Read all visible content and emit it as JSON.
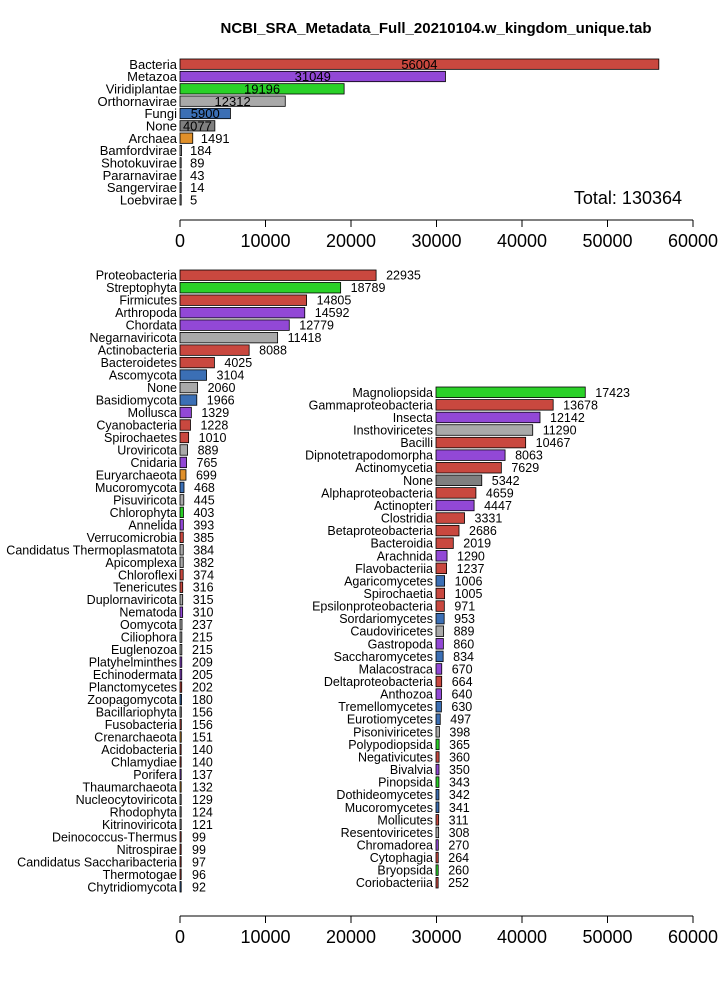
{
  "title": "NCBI_SRA_Metadata_Full_20210104.w_kingdom_unique.tab",
  "colors": {
    "red": "#c9483f",
    "purple": "#9248d6",
    "green": "#2ad128",
    "gray": "#a9a9a9",
    "darkgray": "#7f7f7f",
    "blue": "#3b6fb5",
    "orange": "#e0902a"
  },
  "chart_data": [
    {
      "type": "bar",
      "orientation": "horizontal",
      "annotation": "Total: 130364",
      "xlim": [
        0,
        60000
      ],
      "x_ticks": [
        0,
        10000,
        20000,
        30000,
        40000,
        50000,
        60000
      ],
      "bars": [
        {
          "label": "Bacteria",
          "value": 56004,
          "color": "red",
          "label_inside": true
        },
        {
          "label": "Metazoa",
          "value": 31049,
          "color": "purple",
          "label_inside": true
        },
        {
          "label": "Viridiplantae",
          "value": 19196,
          "color": "green",
          "label_inside": true
        },
        {
          "label": "Orthornavirae",
          "value": 12312,
          "color": "gray",
          "label_inside": true
        },
        {
          "label": "Fungi",
          "value": 5900,
          "color": "blue",
          "label_inside": true
        },
        {
          "label": "None",
          "value": 4077,
          "color": "darkgray",
          "label_inside": true
        },
        {
          "label": "Archaea",
          "value": 1491,
          "color": "orange"
        },
        {
          "label": "Bamfordvirae",
          "value": 184,
          "color": "gray"
        },
        {
          "label": "Shotokuvirae",
          "value": 89,
          "color": "gray"
        },
        {
          "label": "Pararnavirae",
          "value": 43,
          "color": "gray"
        },
        {
          "label": "Sangervirae",
          "value": 14,
          "color": "gray"
        },
        {
          "label": "Loebvirae",
          "value": 5,
          "color": "gray"
        }
      ]
    },
    {
      "type": "bar",
      "orientation": "horizontal",
      "xlim": [
        0,
        60000
      ],
      "x_ticks": [
        0,
        10000,
        20000,
        30000,
        40000,
        50000,
        60000
      ],
      "bars": [
        {
          "label": "Proteobacteria",
          "value": 22935,
          "color": "red"
        },
        {
          "label": "Streptophyta",
          "value": 18789,
          "color": "green"
        },
        {
          "label": "Firmicutes",
          "value": 14805,
          "color": "red"
        },
        {
          "label": "Arthropoda",
          "value": 14592,
          "color": "purple"
        },
        {
          "label": "Chordata",
          "value": 12779,
          "color": "purple"
        },
        {
          "label": "Negarnaviricota",
          "value": 11418,
          "color": "gray"
        },
        {
          "label": "Actinobacteria",
          "value": 8088,
          "color": "red"
        },
        {
          "label": "Bacteroidetes",
          "value": 4025,
          "color": "red"
        },
        {
          "label": "Ascomycota",
          "value": 3104,
          "color": "blue"
        },
        {
          "label": "None",
          "value": 2060,
          "color": "gray"
        },
        {
          "label": "Basidiomycota",
          "value": 1966,
          "color": "blue"
        },
        {
          "label": "Mollusca",
          "value": 1329,
          "color": "purple"
        },
        {
          "label": "Cyanobacteria",
          "value": 1228,
          "color": "red"
        },
        {
          "label": "Spirochaetes",
          "value": 1010,
          "color": "red"
        },
        {
          "label": "Uroviricota",
          "value": 889,
          "color": "gray"
        },
        {
          "label": "Cnidaria",
          "value": 765,
          "color": "purple"
        },
        {
          "label": "Euryarchaeota",
          "value": 699,
          "color": "orange"
        },
        {
          "label": "Mucoromycota",
          "value": 468,
          "color": "blue"
        },
        {
          "label": "Pisuviricota",
          "value": 445,
          "color": "gray"
        },
        {
          "label": "Chlorophyta",
          "value": 403,
          "color": "green"
        },
        {
          "label": "Annelida",
          "value": 393,
          "color": "purple"
        },
        {
          "label": "Verrucomicrobia",
          "value": 385,
          "color": "red"
        },
        {
          "label": "Candidatus Thermoplasmatota",
          "value": 384,
          "color": "gray"
        },
        {
          "label": "Apicomplexa",
          "value": 382,
          "color": "gray"
        },
        {
          "label": "Chloroflexi",
          "value": 374,
          "color": "red"
        },
        {
          "label": "Tenericutes",
          "value": 316,
          "color": "red"
        },
        {
          "label": "Duplornaviricota",
          "value": 315,
          "color": "gray"
        },
        {
          "label": "Nematoda",
          "value": 310,
          "color": "purple"
        },
        {
          "label": "Oomycota",
          "value": 237,
          "color": "gray"
        },
        {
          "label": "Ciliophora",
          "value": 215,
          "color": "gray"
        },
        {
          "label": "Euglenozoa",
          "value": 215,
          "color": "gray"
        },
        {
          "label": "Platyhelminthes",
          "value": 209,
          "color": "purple"
        },
        {
          "label": "Echinodermata",
          "value": 205,
          "color": "purple"
        },
        {
          "label": "Planctomycetes",
          "value": 202,
          "color": "red"
        },
        {
          "label": "Zoopagomycota",
          "value": 180,
          "color": "blue"
        },
        {
          "label": "Bacillariophyta",
          "value": 156,
          "color": "gray"
        },
        {
          "label": "Fusobacteria",
          "value": 156,
          "color": "red"
        },
        {
          "label": "Crenarchaeota",
          "value": 151,
          "color": "orange"
        },
        {
          "label": "Acidobacteria",
          "value": 140,
          "color": "red"
        },
        {
          "label": "Chlamydiae",
          "value": 140,
          "color": "red"
        },
        {
          "label": "Porifera",
          "value": 137,
          "color": "purple"
        },
        {
          "label": "Thaumarchaeota",
          "value": 132,
          "color": "orange"
        },
        {
          "label": "Nucleocytoviricota",
          "value": 129,
          "color": "gray"
        },
        {
          "label": "Rhodophyta",
          "value": 124,
          "color": "gray"
        },
        {
          "label": "Kitrinoviricota",
          "value": 121,
          "color": "gray"
        },
        {
          "label": "Deinococcus-Thermus",
          "value": 99,
          "color": "red"
        },
        {
          "label": "Nitrospirae",
          "value": 99,
          "color": "red"
        },
        {
          "label": "Candidatus Saccharibacteria",
          "value": 97,
          "color": "red"
        },
        {
          "label": "Thermotogae",
          "value": 96,
          "color": "red"
        },
        {
          "label": "Chytridiomycota",
          "value": 92,
          "color": "blue"
        }
      ]
    },
    {
      "type": "bar",
      "orientation": "horizontal",
      "inset": true,
      "xlim": [
        0,
        30000
      ],
      "bars": [
        {
          "label": "Magnoliopsida",
          "value": 17423,
          "color": "green"
        },
        {
          "label": "Gammaproteobacteria",
          "value": 13678,
          "color": "red"
        },
        {
          "label": "Insecta",
          "value": 12142,
          "color": "purple"
        },
        {
          "label": "Insthoviricetes",
          "value": 11290,
          "color": "gray"
        },
        {
          "label": "Bacilli",
          "value": 10467,
          "color": "red"
        },
        {
          "label": "Dipnotetrapodomorpha",
          "value": 8063,
          "color": "purple"
        },
        {
          "label": "Actinomycetia",
          "value": 7629,
          "color": "red"
        },
        {
          "label": "None",
          "value": 5342,
          "color": "darkgray"
        },
        {
          "label": "Alphaproteobacteria",
          "value": 4659,
          "color": "red"
        },
        {
          "label": "Actinopteri",
          "value": 4447,
          "color": "purple"
        },
        {
          "label": "Clostridia",
          "value": 3331,
          "color": "red"
        },
        {
          "label": "Betaproteobacteria",
          "value": 2686,
          "color": "red"
        },
        {
          "label": "Bacteroidia",
          "value": 2019,
          "color": "red"
        },
        {
          "label": "Arachnida",
          "value": 1290,
          "color": "purple"
        },
        {
          "label": "Flavobacteriia",
          "value": 1237,
          "color": "red"
        },
        {
          "label": "Agaricomycetes",
          "value": 1006,
          "color": "blue"
        },
        {
          "label": "Spirochaetia",
          "value": 1005,
          "color": "red"
        },
        {
          "label": "Epsilonproteobacteria",
          "value": 971,
          "color": "red"
        },
        {
          "label": "Sordariomycetes",
          "value": 953,
          "color": "blue"
        },
        {
          "label": "Caudoviricetes",
          "value": 889,
          "color": "gray"
        },
        {
          "label": "Gastropoda",
          "value": 860,
          "color": "purple"
        },
        {
          "label": "Saccharomycetes",
          "value": 834,
          "color": "blue"
        },
        {
          "label": "Malacostraca",
          "value": 670,
          "color": "purple"
        },
        {
          "label": "Deltaproteobacteria",
          "value": 664,
          "color": "red"
        },
        {
          "label": "Anthozoa",
          "value": 640,
          "color": "purple"
        },
        {
          "label": "Tremellomycetes",
          "value": 630,
          "color": "blue"
        },
        {
          "label": "Eurotiomycetes",
          "value": 497,
          "color": "blue"
        },
        {
          "label": "Pisoniviricetes",
          "value": 398,
          "color": "gray"
        },
        {
          "label": "Polypodiopsida",
          "value": 365,
          "color": "green"
        },
        {
          "label": "Negativicutes",
          "value": 360,
          "color": "red"
        },
        {
          "label": "Bivalvia",
          "value": 350,
          "color": "purple"
        },
        {
          "label": "Pinopsida",
          "value": 343,
          "color": "green"
        },
        {
          "label": "Dothideomycetes",
          "value": 342,
          "color": "blue"
        },
        {
          "label": "Mucoromycetes",
          "value": 341,
          "color": "blue"
        },
        {
          "label": "Mollicutes",
          "value": 311,
          "color": "red"
        },
        {
          "label": "Resentoviricetes",
          "value": 308,
          "color": "gray"
        },
        {
          "label": "Chromadorea",
          "value": 270,
          "color": "purple"
        },
        {
          "label": "Cytophagia",
          "value": 264,
          "color": "red"
        },
        {
          "label": "Bryopsida",
          "value": 260,
          "color": "green"
        },
        {
          "label": "Coriobacteriia",
          "value": 252,
          "color": "red"
        }
      ]
    }
  ]
}
